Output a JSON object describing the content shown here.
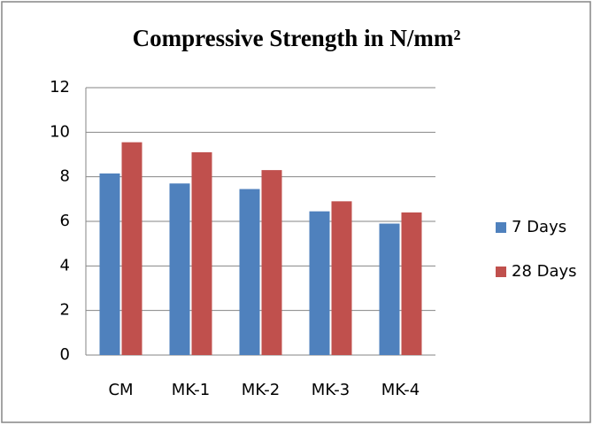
{
  "chart_data": {
    "type": "bar",
    "title": "Compressive Strength in N/mm²",
    "categories": [
      "CM",
      "MK-1",
      "MK-2",
      "MK-3",
      "MK-4"
    ],
    "series": [
      {
        "name": "7 Days",
        "color": "#4f81bd",
        "values": [
          8.15,
          7.7,
          7.45,
          6.45,
          5.9
        ]
      },
      {
        "name": "28 Days",
        "color": "#c0504d",
        "values": [
          9.55,
          9.1,
          8.3,
          6.9,
          6.4
        ]
      }
    ],
    "ylim": [
      0,
      12
    ],
    "yticks": [
      0,
      2,
      4,
      6,
      8,
      10,
      12
    ],
    "grid": true,
    "legend": "right"
  }
}
